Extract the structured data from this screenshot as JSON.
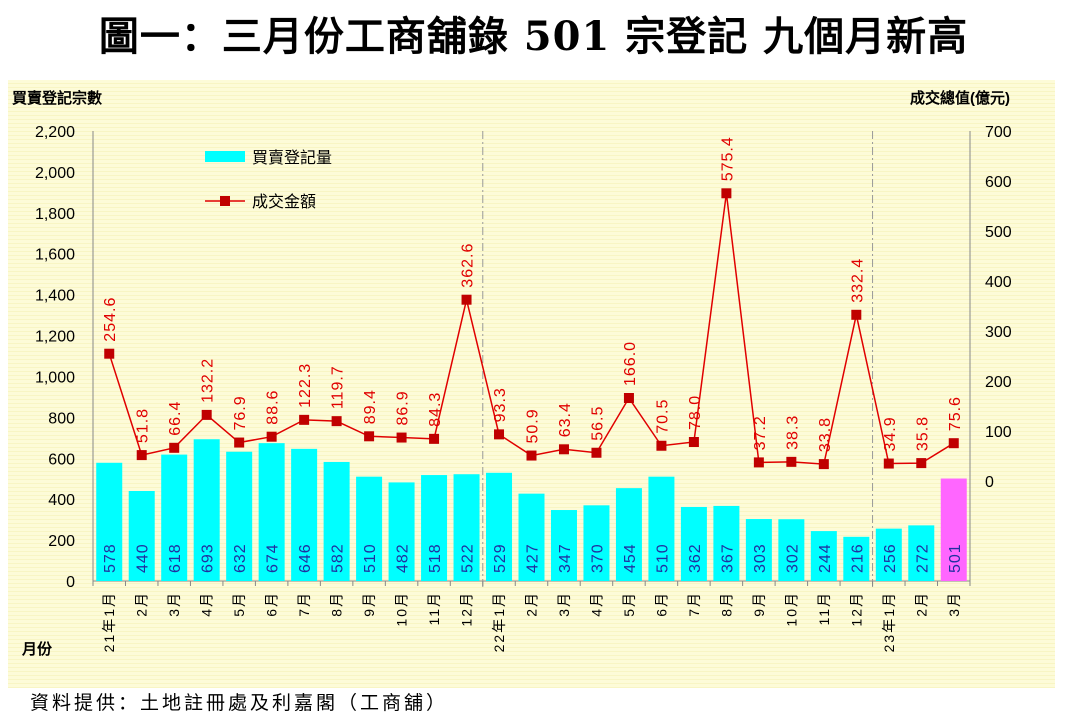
{
  "title": "圖一：三月份工商舖錄 501 宗登記  九個月新高",
  "source": "資料提供：土地註冊處及利嘉閣（工商舖）",
  "chart_data": {
    "type": "bar+line",
    "title": "圖一：三月份工商舖錄 501 宗登記  九個月新高",
    "xlabel": "月份",
    "ylabel": "買賣登記宗數",
    "y2label": "成交總值(億元)",
    "ylim": [
      0,
      2200
    ],
    "y2lim": [
      0,
      700
    ],
    "yticks": [
      "0",
      "200",
      "400",
      "600",
      "800",
      "1,000",
      "1,200",
      "1,400",
      "1,600",
      "1,800",
      "2,000",
      "2,200"
    ],
    "y2ticks": [
      "0",
      "100",
      "200",
      "300",
      "400",
      "500",
      "600",
      "700"
    ],
    "categories": [
      "21年1月",
      "2月",
      "3月",
      "4月",
      "5月",
      "6月",
      "7月",
      "8月",
      "9月",
      "10月",
      "11月",
      "12月",
      "22年1月",
      "2月",
      "3月",
      "4月",
      "5月",
      "6月",
      "7月",
      "8月",
      "9月",
      "10月",
      "11月",
      "12月",
      "23年1月",
      "2月",
      "3月"
    ],
    "legend_position": "top-left",
    "series": [
      {
        "name": "買賣登記量",
        "type": "bar",
        "axis": "left",
        "color": "#00ffff",
        "highlight_color": "#ff66ff",
        "values": [
          578,
          440,
          618,
          693,
          632,
          674,
          646,
          582,
          510,
          482,
          518,
          522,
          529,
          427,
          347,
          370,
          454,
          510,
          362,
          367,
          303,
          302,
          244,
          216,
          256,
          272,
          501
        ]
      },
      {
        "name": "成交金額",
        "type": "line",
        "axis": "right",
        "color": "#e00000",
        "marker_color": "#c00000",
        "values": [
          "254.6",
          "51.8",
          "66.4",
          "132.2",
          "76.9",
          "88.6",
          "122.3",
          "119.7",
          "89.4",
          "86.9",
          "84.3",
          "362.6",
          "93.3",
          "50.9",
          "63.4",
          "56.5",
          "166.0",
          "70.5",
          "78.0",
          "575.4",
          "37.2",
          "38.3",
          "33.8",
          "332.4",
          "34.9",
          "35.8",
          "75.6"
        ]
      }
    ]
  }
}
